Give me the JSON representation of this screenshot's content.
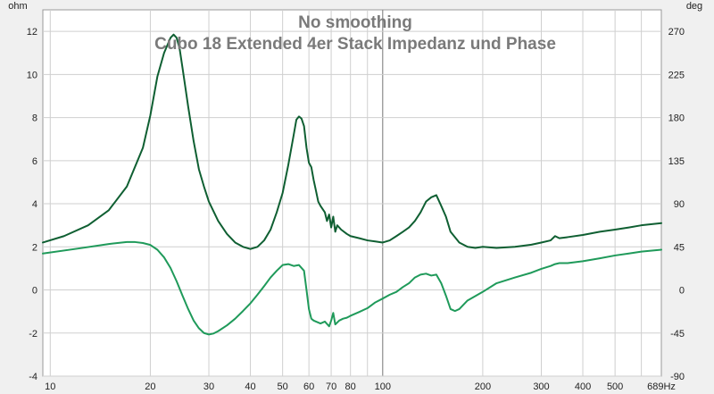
{
  "chart_data": {
    "type": "line",
    "title": "No smoothing",
    "subtitle": "Cubo 18 Extended 4er Stack Impedanz und Phase",
    "left_unit": "ohm",
    "right_unit": "deg",
    "x_scale": "log",
    "xlim": [
      9.5,
      689
    ],
    "ylim_left": [
      -4,
      13
    ],
    "ylim_right": [
      -90,
      292.5
    ],
    "x_tick_values": [
      10,
      20,
      30,
      40,
      50,
      60,
      70,
      80,
      100,
      200,
      300,
      400,
      500,
      689
    ],
    "x_tick_labels": [
      "10",
      "20",
      "30",
      "40",
      "50",
      "60",
      "70",
      "80",
      "100",
      "200",
      "300",
      "400",
      "500",
      "689Hz"
    ],
    "y_left_tick_values": [
      -4,
      -2,
      0,
      2,
      4,
      6,
      8,
      10,
      12
    ],
    "y_left_tick_labels": [
      "-4",
      "-2",
      "0",
      "2",
      "4",
      "6",
      "8",
      "10",
      "12"
    ],
    "y_right_tick_values": [
      -90,
      -45,
      0,
      45,
      90,
      135,
      180,
      225,
      270
    ],
    "y_right_tick_labels": [
      "-90",
      "-45",
      "0",
      "45",
      "90",
      "135",
      "180",
      "225",
      "270"
    ],
    "grid": true,
    "legend": "none",
    "colors": {
      "background": "#f0f0f0",
      "plot_background": "#ffffff",
      "grid": "#cfcfcf",
      "impedance": "#0f5f32",
      "phase": "#1f9a5a",
      "title": "#7a7a7a"
    },
    "series": [
      {
        "axis": "left",
        "x": [
          9.5,
          11,
          13,
          15,
          17,
          19,
          20,
          21,
          22,
          23,
          23.5,
          24,
          24.5,
          25,
          26,
          27,
          28,
          29,
          30,
          32,
          34,
          36,
          38,
          40,
          42,
          44,
          46,
          48,
          50,
          52,
          54,
          55,
          56,
          57,
          58,
          59,
          60,
          61,
          62,
          63,
          64,
          65,
          67,
          68,
          69,
          70,
          71,
          72,
          73,
          75,
          78,
          80,
          85,
          90,
          95,
          100,
          105,
          110,
          115,
          120,
          125,
          130,
          135,
          140,
          145,
          150,
          155,
          160,
          170,
          180,
          190,
          200,
          220,
          250,
          280,
          300,
          320,
          330,
          340,
          360,
          400,
          450,
          500,
          550,
          600,
          689
        ],
        "y": [
          2.2,
          2.5,
          3.0,
          3.7,
          4.8,
          6.6,
          8.1,
          9.9,
          11.0,
          11.7,
          11.85,
          11.7,
          11.2,
          10.3,
          8.5,
          6.9,
          5.6,
          4.8,
          4.1,
          3.2,
          2.6,
          2.2,
          2.0,
          1.9,
          2.0,
          2.3,
          2.8,
          3.6,
          4.5,
          5.8,
          7.2,
          7.9,
          8.05,
          7.95,
          7.6,
          6.6,
          5.9,
          5.7,
          5.1,
          4.6,
          4.1,
          3.9,
          3.6,
          3.2,
          3.5,
          2.9,
          3.4,
          2.7,
          3.0,
          2.8,
          2.6,
          2.5,
          2.4,
          2.3,
          2.25,
          2.2,
          2.3,
          2.5,
          2.7,
          2.9,
          3.2,
          3.6,
          4.1,
          4.3,
          4.4,
          3.9,
          3.4,
          2.7,
          2.2,
          2.0,
          1.95,
          2.0,
          1.95,
          2.0,
          2.1,
          2.2,
          2.3,
          2.5,
          2.4,
          2.45,
          2.55,
          2.7,
          2.8,
          2.9,
          3.0,
          3.1
        ]
      },
      {
        "axis": "right",
        "x": [
          9.5,
          12,
          15,
          17,
          18,
          19,
          20,
          21,
          22,
          23,
          24,
          25,
          26,
          27,
          28,
          29,
          30,
          31,
          32,
          34,
          36,
          38,
          40,
          42,
          44,
          46,
          48,
          50,
          52,
          54,
          56,
          58,
          59,
          60,
          61,
          62,
          63,
          65,
          67,
          69,
          70,
          71,
          72,
          74,
          76,
          78,
          80,
          85,
          90,
          95,
          100,
          105,
          110,
          115,
          120,
          125,
          130,
          135,
          140,
          145,
          150,
          155,
          160,
          165,
          170,
          180,
          200,
          220,
          250,
          280,
          300,
          320,
          330,
          340,
          360,
          400,
          450,
          500,
          550,
          600,
          689
        ],
        "y": [
          38,
          43,
          48,
          50,
          50,
          49,
          47,
          42,
          34,
          23,
          9,
          -6,
          -20,
          -32,
          -40,
          -45,
          -46.5,
          -45.5,
          -43,
          -37,
          -30,
          -22,
          -14,
          -5,
          4,
          13,
          20,
          26,
          27,
          25,
          26,
          20,
          0,
          -20,
          -30,
          -32,
          -33,
          -35,
          -33,
          -38,
          -32,
          -24,
          -36,
          -32,
          -30,
          -29,
          -27,
          -23,
          -19,
          -13,
          -9,
          -5,
          -2,
          3,
          7,
          13,
          16,
          17,
          15,
          16,
          7,
          -6,
          -20,
          -22,
          -20,
          -11,
          -2,
          7,
          13,
          18,
          22,
          25,
          27,
          28,
          28,
          30,
          33,
          36,
          38,
          40,
          42
        ]
      }
    ]
  }
}
